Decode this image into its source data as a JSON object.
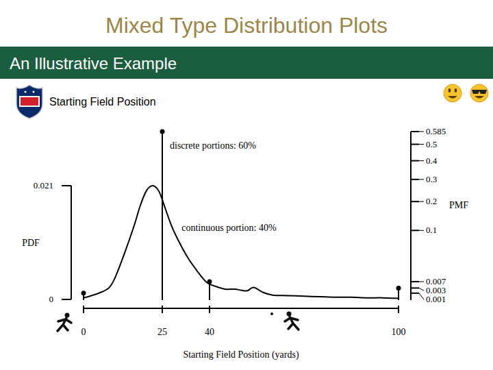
{
  "slide": {
    "title": "Mixed Type Distribution Plots",
    "banner": "An Illustrative Example",
    "subtitle": "Starting Field Position"
  },
  "chart_data": {
    "type": "mixed",
    "x_label": "Starting Field Position (yards)",
    "y_label": "PDF",
    "y2_label": "PMF",
    "xlim": [
      0,
      100
    ],
    "xticks": [
      0,
      25,
      40,
      100
    ],
    "ylim": [
      0,
      0.021
    ],
    "yticks": [
      0,
      0.021
    ],
    "y2lim": [
      0,
      0.585
    ],
    "y2ticks": [
      0.001,
      0.003,
      0.007,
      0.1,
      0.2,
      0.3,
      0.4,
      0.5,
      0.585
    ],
    "annotations": [
      "discrete portions: 60%",
      "continuous portion: 40%"
    ],
    "series": [
      {
        "type": "line",
        "color": "#000000",
        "x": [
          0,
          2,
          5,
          8,
          10,
          13,
          16,
          18,
          20,
          22,
          24,
          26,
          28,
          30,
          33,
          36,
          39,
          42,
          45,
          48,
          50,
          52,
          54,
          57,
          60,
          65,
          70,
          75,
          80,
          85,
          90,
          95,
          100
        ],
        "values": [
          0.0003,
          0.0006,
          0.0012,
          0.0021,
          0.004,
          0.0085,
          0.0135,
          0.0173,
          0.0201,
          0.021,
          0.0199,
          0.0167,
          0.0135,
          0.011,
          0.0078,
          0.0053,
          0.0032,
          0.0024,
          0.0019,
          0.0019,
          0.0017,
          0.0016,
          0.0022,
          0.0013,
          0.0008,
          0.0007,
          0.0006,
          0.0005,
          0.0004,
          0.0004,
          0.0003,
          0.0003,
          0.0002
        ]
      },
      {
        "type": "spike",
        "axis": "y2",
        "color": "#000000",
        "marker": "circle",
        "x": [
          0,
          25,
          40,
          100
        ],
        "values": [
          0.001,
          0.585,
          0.007,
          0.003
        ]
      }
    ]
  }
}
